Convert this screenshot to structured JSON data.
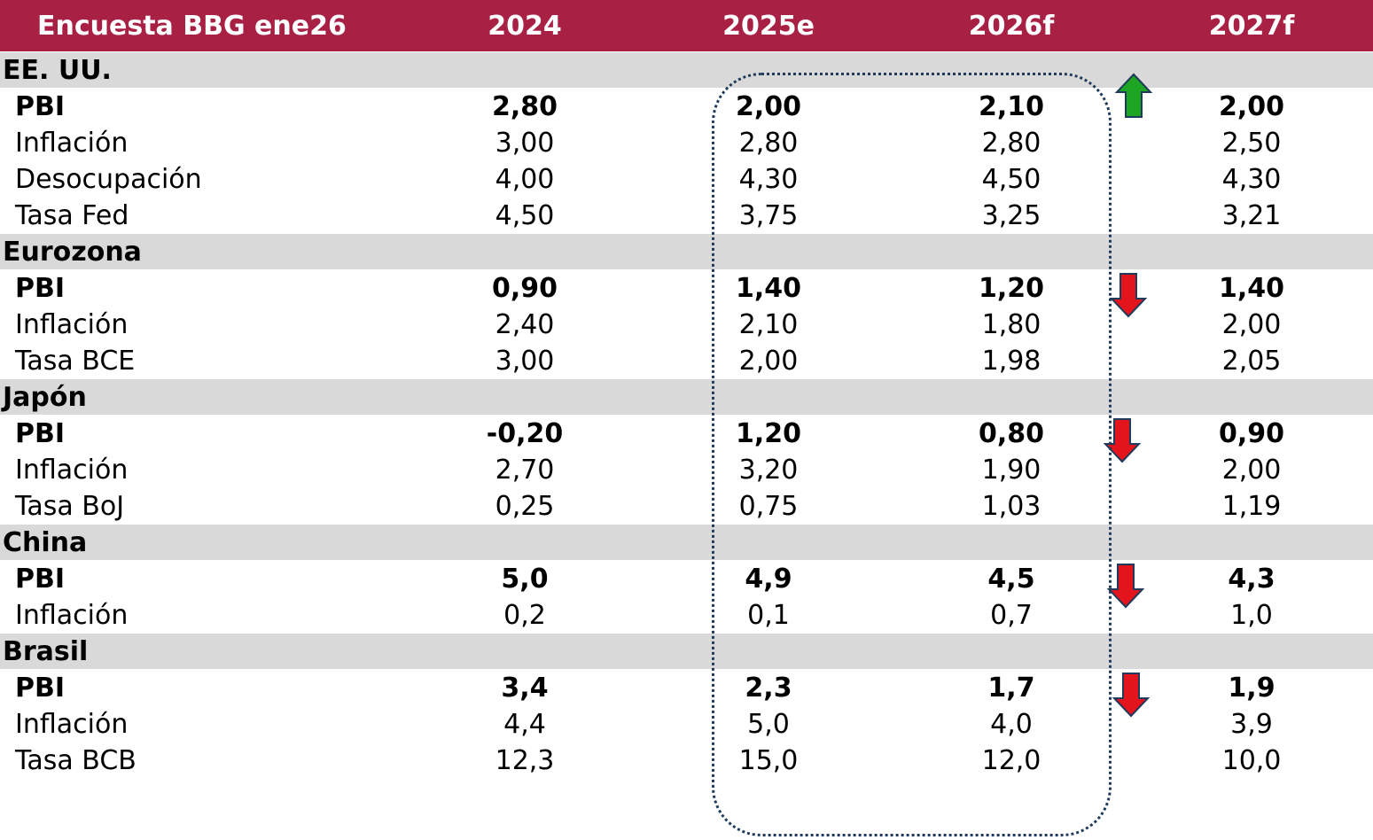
{
  "chart_data": {
    "type": "table",
    "columns": [
      "Encuesta BBG ene26",
      "2024",
      "2025e",
      "2026f",
      "2027f"
    ],
    "colors": {
      "header_bg": "#a82145",
      "section_bg": "#d9d9d9",
      "arrow_up": "#1fa524",
      "arrow_down": "#e3141c"
    },
    "sections": [
      {
        "name": "EE. UU.",
        "trend": "up",
        "rows": [
          {
            "label": "PBI",
            "bold": true,
            "values": [
              "2,80",
              "2,00",
              "2,10",
              "2,00"
            ]
          },
          {
            "label": "Inflación",
            "values": [
              "3,00",
              "2,80",
              "2,80",
              "2,50"
            ]
          },
          {
            "label": "Desocupación",
            "values": [
              "4,00",
              "4,30",
              "4,50",
              "4,30"
            ]
          },
          {
            "label": "Tasa Fed",
            "values": [
              "4,50",
              "3,75",
              "3,25",
              "3,21"
            ]
          }
        ]
      },
      {
        "name": "Eurozona",
        "trend": "down",
        "rows": [
          {
            "label": "PBI",
            "bold": true,
            "values": [
              "0,90",
              "1,40",
              "1,20",
              "1,40"
            ]
          },
          {
            "label": "Inflación",
            "values": [
              "2,40",
              "2,10",
              "1,80",
              "2,00"
            ]
          },
          {
            "label": "Tasa BCE",
            "values": [
              "3,00",
              "2,00",
              "1,98",
              "2,05"
            ]
          }
        ]
      },
      {
        "name": "Japón",
        "trend": "down",
        "rows": [
          {
            "label": "PBI",
            "bold": true,
            "values": [
              "-0,20",
              "1,20",
              "0,80",
              "0,90"
            ]
          },
          {
            "label": "Inflación",
            "values": [
              "2,70",
              "3,20",
              "1,90",
              "2,00"
            ]
          },
          {
            "label": "Tasa BoJ",
            "values": [
              "0,25",
              "0,75",
              "1,03",
              "1,19"
            ]
          }
        ]
      },
      {
        "name": "China",
        "trend": "down",
        "rows": [
          {
            "label": "PBI",
            "bold": true,
            "values": [
              "5,0",
              "4,9",
              "4,5",
              "4,3"
            ]
          },
          {
            "label": "Inflación",
            "values": [
              "0,2",
              "0,1",
              "0,7",
              "1,0"
            ]
          }
        ]
      },
      {
        "name": "Brasil",
        "trend": "down",
        "rows": [
          {
            "label": "PBI",
            "bold": true,
            "values": [
              "3,4",
              "2,3",
              "1,7",
              "1,9"
            ]
          },
          {
            "label": "Inflación",
            "values": [
              "4,4",
              "5,0",
              "4,0",
              "3,9"
            ]
          },
          {
            "label": "Tasa BCB",
            "values": [
              "12,3",
              "15,0",
              "12,0",
              "10,0"
            ]
          }
        ]
      }
    ]
  }
}
